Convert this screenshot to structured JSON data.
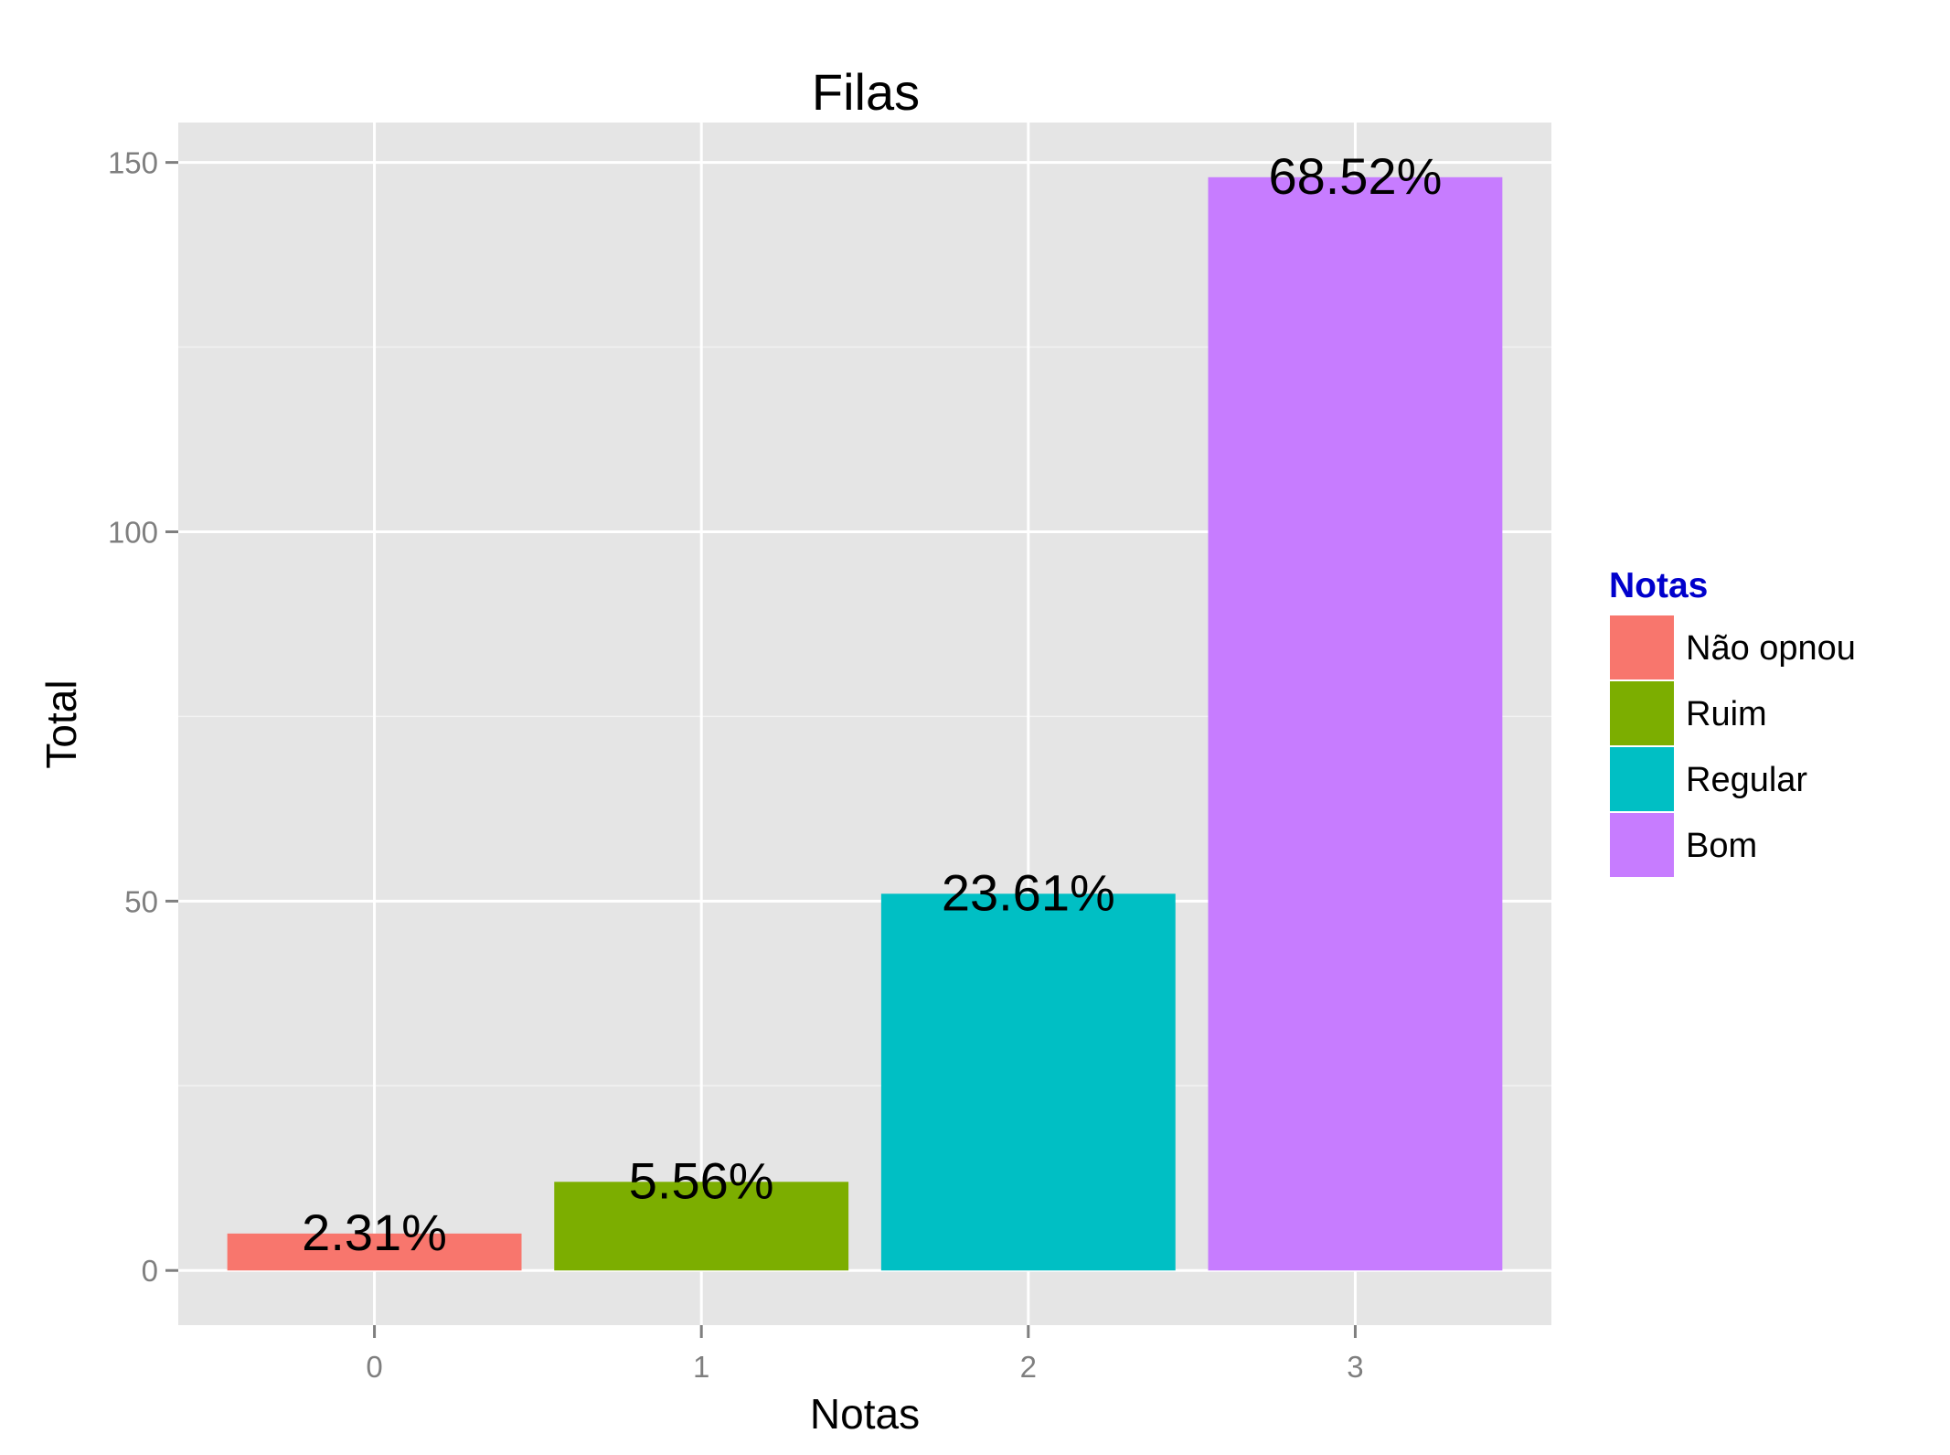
{
  "chart_data": {
    "type": "bar",
    "title": "Filas",
    "xlabel": "Notas",
    "ylabel": "Total",
    "categories": [
      "0",
      "1",
      "2",
      "3"
    ],
    "values": [
      5,
      12,
      51,
      148
    ],
    "data_labels": [
      "2.31%",
      "5.56%",
      "23.61%",
      "68.52%"
    ],
    "ylim": [
      -7.4,
      155.4
    ],
    "yticks": [
      0,
      50,
      100,
      150
    ],
    "ytick_labels": [
      "0",
      "50",
      "100",
      "150"
    ],
    "grid": true,
    "legend": {
      "title": "Notas",
      "position": "right",
      "entries": [
        "Não opnou",
        "Ruim",
        "Regular",
        "Bom"
      ]
    },
    "colors": [
      "#F8766D",
      "#7CAE00",
      "#00BFC4",
      "#C77CFF"
    ],
    "panel_background": "#E5E5E5",
    "grid_color": "#FFFFFF"
  }
}
